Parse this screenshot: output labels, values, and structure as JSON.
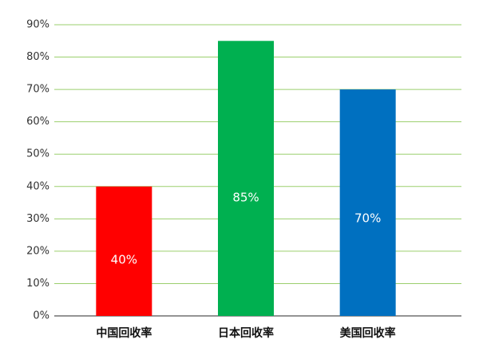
{
  "chart_data": {
    "type": "bar",
    "categories": [
      "中国回收率",
      "日本回收率",
      "美国回收率"
    ],
    "values": [
      40,
      85,
      70
    ],
    "value_labels": [
      "40%",
      "85%",
      "70%"
    ],
    "colors": [
      "#ff0000",
      "#00b050",
      "#0070c0"
    ],
    "ylim": [
      0,
      90
    ],
    "yticks": [
      {
        "value": 0,
        "label": "0%"
      },
      {
        "value": 10,
        "label": "10%"
      },
      {
        "value": 20,
        "label": "20%"
      },
      {
        "value": 30,
        "label": "30%"
      },
      {
        "value": 40,
        "label": "40%"
      },
      {
        "value": 50,
        "label": "50%"
      },
      {
        "value": 60,
        "label": "60%"
      },
      {
        "value": 70,
        "label": "70%"
      },
      {
        "value": 80,
        "label": "80%"
      },
      {
        "value": 90,
        "label": "90%"
      }
    ],
    "grid": true
  }
}
